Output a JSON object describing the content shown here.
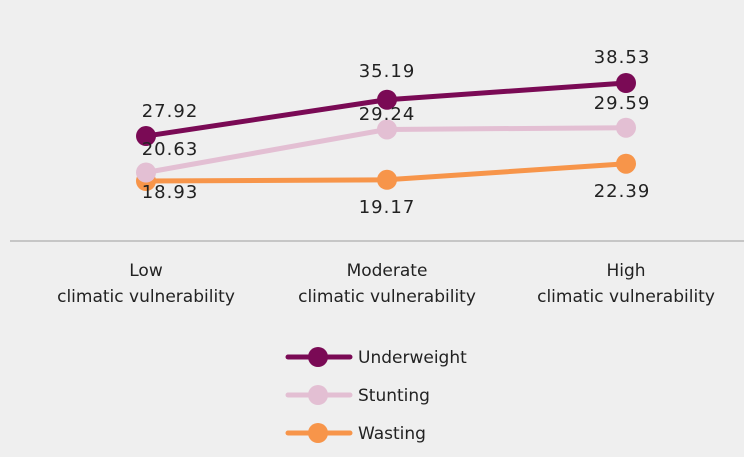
{
  "chart_data": {
    "type": "line",
    "categories": [
      [
        "Low",
        "climatic vulnerability"
      ],
      [
        "Moderate",
        "climatic vulnerability"
      ],
      [
        "High",
        "climatic vulnerability"
      ]
    ],
    "series": [
      {
        "name": "Underweight",
        "color": "#7a0a55",
        "values": [
          27.92,
          35.19,
          38.53
        ]
      },
      {
        "name": "Stunting",
        "color": "#e3bfd3",
        "values": [
          20.63,
          29.24,
          29.59
        ]
      },
      {
        "name": "Wasting",
        "color": "#f7954a",
        "values": [
          18.93,
          19.17,
          22.39
        ]
      }
    ],
    "data_labels": [
      [
        "27.92",
        "35.19",
        "38.53"
      ],
      [
        "20.63",
        "29.24",
        "29.59"
      ],
      [
        "18.93",
        "19.17",
        "22.39"
      ]
    ],
    "title": "",
    "xlabel": "",
    "ylabel": "",
    "grid": false,
    "legend_position": "bottom-center",
    "colors": {
      "background": "#efefef",
      "axis": "#b8b8b8",
      "text": "#222222"
    }
  }
}
